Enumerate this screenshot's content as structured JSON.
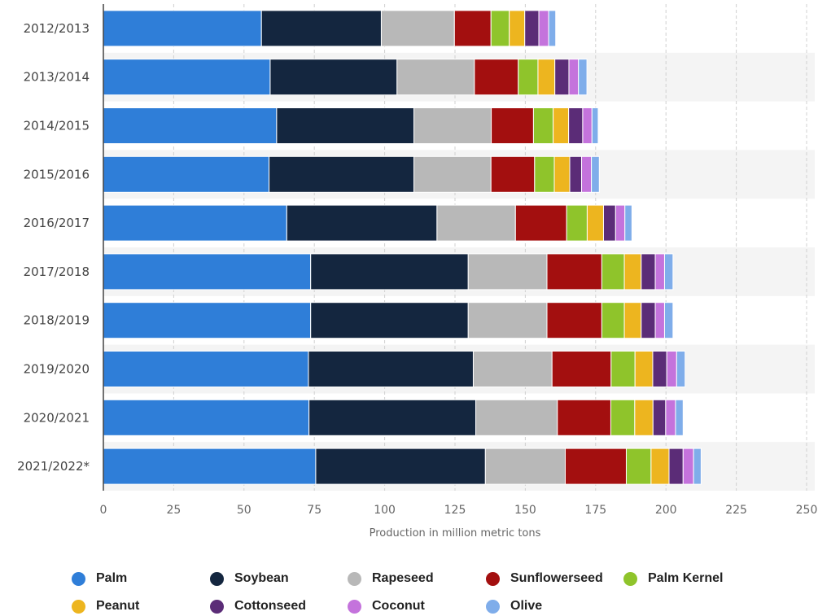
{
  "chart_data": {
    "type": "bar",
    "orientation": "horizontal",
    "stacked": true,
    "title": "",
    "xlabel": "Production in million metric tons",
    "ylabel": "",
    "xlim": [
      0,
      250
    ],
    "xticks": [
      "0",
      "25",
      "50",
      "75",
      "100",
      "125",
      "150",
      "175",
      "200",
      "225",
      "250"
    ],
    "grid": true,
    "legend_position": "bottom",
    "categories": [
      "2012/2013",
      "2013/2014",
      "2014/2015",
      "2015/2016",
      "2016/2017",
      "2017/2018",
      "2018/2019",
      "2019/2020",
      "2020/2021",
      "2021/2022*"
    ],
    "series": [
      {
        "name": "Palm",
        "color": "#2f7ed8",
        "values": [
          56.2,
          59.3,
          61.6,
          58.9,
          65.2,
          73.7,
          73.7,
          72.9,
          73.1,
          75.5
        ]
      },
      {
        "name": "Soybean",
        "color": "#14263f",
        "values": [
          42.6,
          45.1,
          48.8,
          51.5,
          53.4,
          56.0,
          56.0,
          58.6,
          59.3,
          60.3
        ]
      },
      {
        "name": "Rapeseed",
        "color": "#b8b8b8",
        "values": [
          26.0,
          27.5,
          27.5,
          27.4,
          27.9,
          28.0,
          28.0,
          28.0,
          29.0,
          28.4
        ]
      },
      {
        "name": "Sunflowerseed",
        "color": "#a30f0f",
        "values": [
          13.0,
          15.6,
          15.0,
          15.5,
          18.2,
          19.5,
          19.5,
          21.0,
          19.0,
          21.7
        ]
      },
      {
        "name": "Palm Kernel",
        "color": "#8fc42b",
        "values": [
          6.5,
          7.0,
          7.0,
          7.0,
          7.3,
          8.0,
          8.0,
          8.5,
          8.5,
          8.8
        ]
      },
      {
        "name": "Peanut",
        "color": "#edb51f",
        "values": [
          5.5,
          6.0,
          5.5,
          5.5,
          5.8,
          6.0,
          6.0,
          6.3,
          6.5,
          6.4
        ]
      },
      {
        "name": "Cottonseed",
        "color": "#5b2c77",
        "values": [
          5.0,
          5.0,
          5.0,
          4.2,
          4.3,
          5.0,
          5.0,
          5.0,
          4.5,
          5.0
        ]
      },
      {
        "name": "Coconut",
        "color": "#c473dc",
        "values": [
          3.5,
          3.4,
          3.3,
          3.5,
          3.3,
          3.3,
          3.3,
          3.5,
          3.5,
          3.7
        ]
      },
      {
        "name": "Olive",
        "color": "#7fadea",
        "values": [
          2.5,
          3.0,
          2.2,
          2.8,
          2.5,
          3.0,
          3.0,
          3.0,
          2.7,
          2.7
        ]
      }
    ]
  }
}
